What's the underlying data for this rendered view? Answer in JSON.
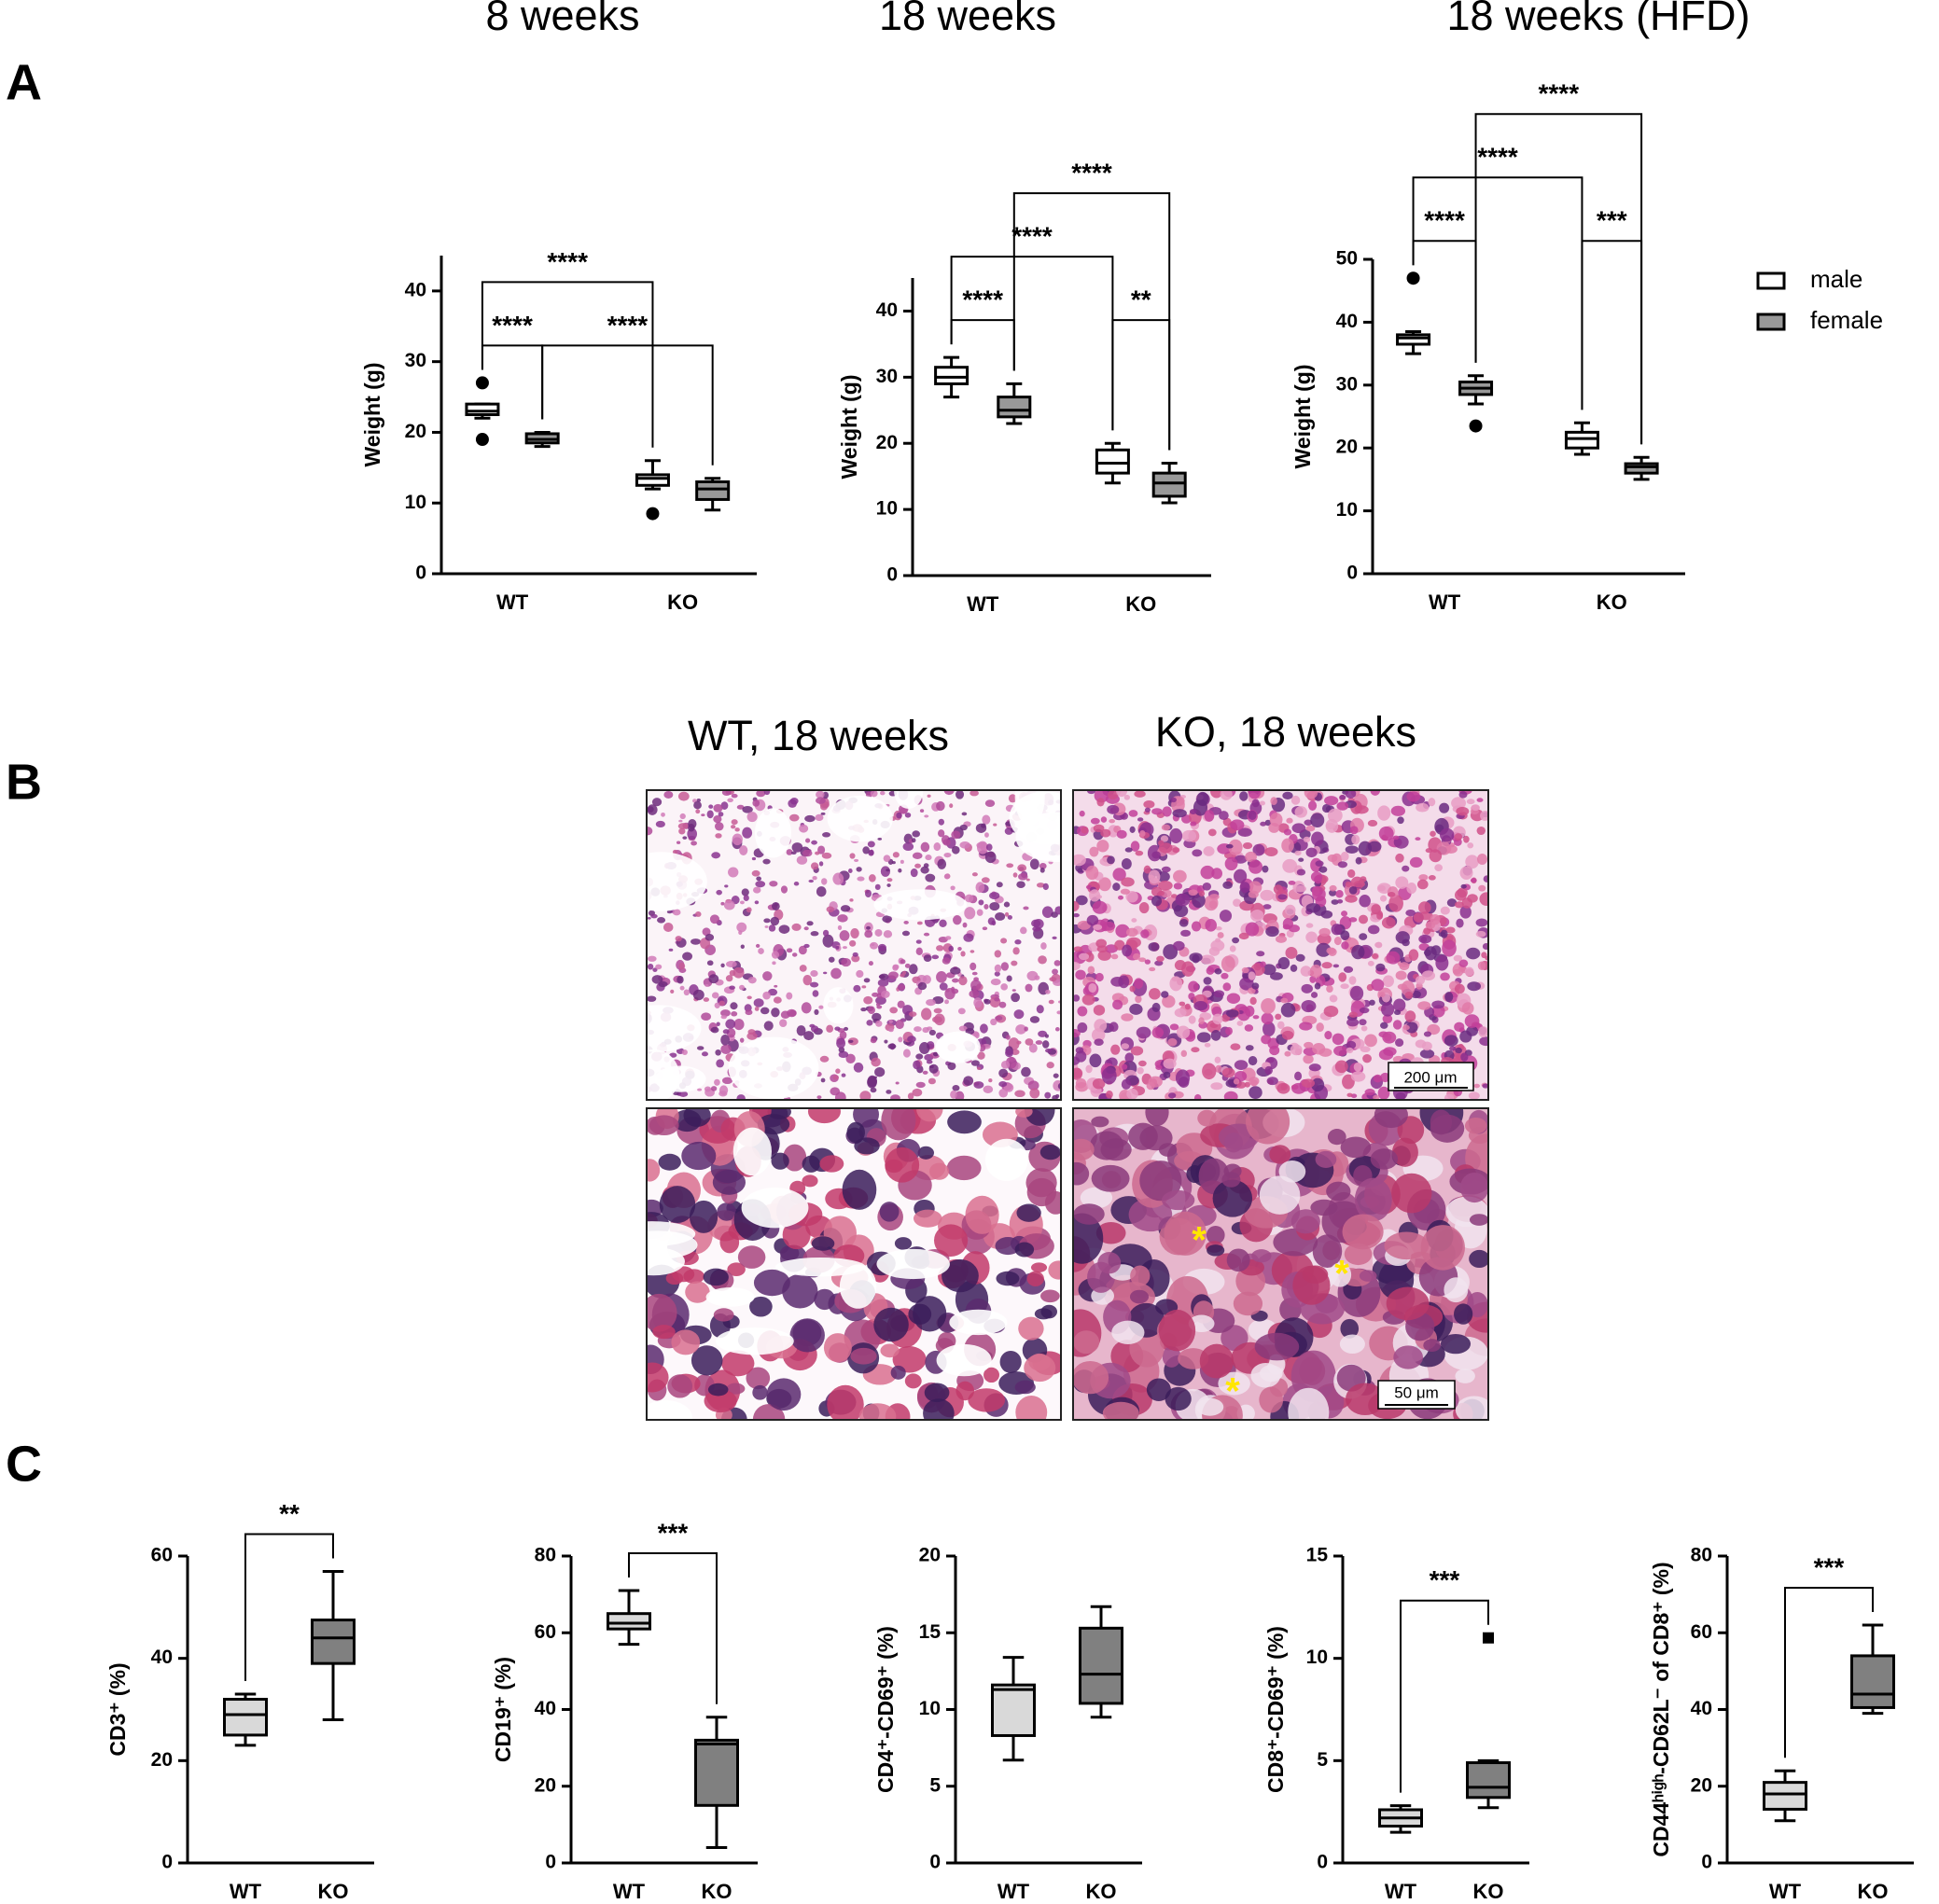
{
  "panels": [
    "A",
    "B",
    "C"
  ],
  "histology": {
    "titles": [
      "WT, 18 weeks",
      "KO, 18 weeks"
    ],
    "scale_bars": [
      "200 μm",
      "50 μm"
    ],
    "markers": [
      "*",
      "*",
      "*"
    ]
  },
  "chart_data": [
    {
      "type": "box",
      "title": "8 weeks",
      "y_label": "Weight (g)",
      "categories": [
        "WT",
        "KO"
      ],
      "ylim": [
        0,
        45
      ],
      "yticks": [
        0,
        10,
        20,
        30,
        40
      ],
      "series": [
        {
          "color": "#ffffff",
          "values": [
            {
              "min": 22,
              "q1": 22.5,
              "median": 23,
              "q3": 24,
              "max": 24,
              "outliers": [
                27,
                19
              ]
            },
            {
              "min": 12,
              "q1": 12.5,
              "median": 13.5,
              "q3": 14,
              "max": 16,
              "outliers": [
                8.5
              ]
            }
          ]
        },
        {
          "color": "#999999",
          "values": [
            {
              "min": 18,
              "q1": 18.5,
              "median": 19,
              "q3": 19.8,
              "max": 20
            },
            {
              "min": 9,
              "q1": 10.5,
              "median": 12,
              "q3": 13,
              "max": 13.5
            }
          ]
        }
      ],
      "comparisons": [
        {
          "groups": [
            0,
            1
          ],
          "label": "****"
        },
        {
          "groups": [
            1,
            3
          ],
          "label": "****"
        },
        {
          "groups": [
            0,
            2
          ],
          "label": "****"
        }
      ]
    },
    {
      "type": "box",
      "title": "18 weeks",
      "y_label": "Weight (g)",
      "categories": [
        "WT",
        "KO"
      ],
      "ylim": [
        0,
        45
      ],
      "yticks": [
        0,
        10,
        20,
        30,
        40
      ],
      "series": [
        {
          "color": "#ffffff",
          "values": [
            {
              "min": 27,
              "q1": 29,
              "median": 30,
              "q3": 31.5,
              "max": 33
            },
            {
              "min": 14,
              "q1": 15.5,
              "median": 17,
              "q3": 19,
              "max": 20
            }
          ]
        },
        {
          "color": "#999999",
          "values": [
            {
              "min": 23,
              "q1": 24,
              "median": 25,
              "q3": 27,
              "max": 29
            },
            {
              "min": 11,
              "q1": 12,
              "median": 14,
              "q3": 15.5,
              "max": 17
            }
          ]
        }
      ],
      "comparisons": [
        {
          "groups": [
            0,
            1
          ],
          "label": "****"
        },
        {
          "groups": [
            2,
            3
          ],
          "label": "**"
        },
        {
          "groups": [
            0,
            2
          ],
          "label": "****"
        },
        {
          "groups": [
            1,
            3
          ],
          "label": "****"
        }
      ]
    },
    {
      "type": "box",
      "title": "18 weeks (HFD)",
      "y_label": "Weight (g)",
      "categories": [
        "WT",
        "KO"
      ],
      "ylim": [
        0,
        50
      ],
      "yticks": [
        0,
        10,
        20,
        30,
        40,
        50
      ],
      "legend": "right",
      "series": [
        {
          "name": "male",
          "color": "#ffffff",
          "values": [
            {
              "min": 35,
              "q1": 36.5,
              "median": 37.5,
              "q3": 38,
              "max": 38.5,
              "outliers": [
                47
              ]
            },
            {
              "min": 19,
              "q1": 20,
              "median": 21.5,
              "q3": 22.5,
              "max": 24
            }
          ]
        },
        {
          "name": "female",
          "color": "#999999",
          "values": [
            {
              "min": 27,
              "q1": 28.5,
              "median": 29.5,
              "q3": 30.5,
              "max": 31.5,
              "outliers": [
                23.5
              ]
            },
            {
              "min": 15,
              "q1": 16,
              "median": 17,
              "q3": 17.5,
              "max": 18.5
            }
          ]
        }
      ],
      "comparisons": [
        {
          "groups": [
            0,
            1
          ],
          "label": "****"
        },
        {
          "groups": [
            2,
            3
          ],
          "label": "***"
        },
        {
          "groups": [
            0,
            2
          ],
          "label": "****"
        },
        {
          "groups": [
            1,
            3
          ],
          "label": "****"
        }
      ]
    },
    {
      "type": "box",
      "y_label": "CD3⁺ (%)",
      "categories": [
        "WT",
        "KO"
      ],
      "ylim": [
        0,
        60
      ],
      "yticks": [
        0,
        20,
        40,
        60
      ],
      "series": [
        {
          "colors": [
            "#d9d9d9",
            "#808080"
          ],
          "values": [
            {
              "min": 23,
              "q1": 25,
              "median": 29,
              "q3": 32,
              "max": 33
            },
            {
              "min": 28,
              "q1": 39,
              "median": 44,
              "q3": 47.5,
              "max": 57
            }
          ]
        }
      ],
      "comparisons": [
        {
          "groups": [
            0,
            1
          ],
          "label": "**"
        }
      ]
    },
    {
      "type": "box",
      "y_label": "CD19⁺ (%)",
      "categories": [
        "WT",
        "KO"
      ],
      "ylim": [
        0,
        80
      ],
      "yticks": [
        0,
        20,
        40,
        60,
        80
      ],
      "series": [
        {
          "colors": [
            "#d9d9d9",
            "#808080"
          ],
          "values": [
            {
              "min": 57,
              "q1": 61,
              "median": 62.5,
              "q3": 65,
              "max": 71
            },
            {
              "min": 4,
              "q1": 15,
              "median": 31,
              "q3": 32,
              "max": 38
            }
          ]
        }
      ],
      "comparisons": [
        {
          "groups": [
            0,
            1
          ],
          "label": "***"
        }
      ]
    },
    {
      "type": "box",
      "y_label": "CD4⁺-CD69⁺ (%)",
      "categories": [
        "WT",
        "KO"
      ],
      "ylim": [
        0,
        20
      ],
      "yticks": [
        0,
        5,
        10,
        15,
        20
      ],
      "series": [
        {
          "colors": [
            "#d9d9d9",
            "#808080"
          ],
          "values": [
            {
              "min": 6.7,
              "q1": 8.3,
              "median": 11.3,
              "q3": 11.6,
              "max": 13.4
            },
            {
              "min": 9.5,
              "q1": 10.4,
              "median": 12.3,
              "q3": 15.3,
              "max": 16.7
            }
          ]
        }
      ]
    },
    {
      "type": "box",
      "y_label": "CD8⁺-CD69⁺ (%)",
      "categories": [
        "WT",
        "KO"
      ],
      "ylim": [
        0,
        15
      ],
      "yticks": [
        0,
        5,
        10,
        15
      ],
      "series": [
        {
          "colors": [
            "#d9d9d9",
            "#808080"
          ],
          "marker": "square",
          "values": [
            {
              "min": 1.5,
              "q1": 1.8,
              "median": 2.2,
              "q3": 2.6,
              "max": 2.8
            },
            {
              "min": 2.7,
              "q1": 3.2,
              "median": 3.7,
              "q3": 4.9,
              "max": 5,
              "outliers": [
                11
              ]
            }
          ]
        }
      ],
      "comparisons": [
        {
          "groups": [
            0,
            1
          ],
          "label": "***"
        }
      ]
    },
    {
      "type": "box",
      "y_label": "CD44ʰⁱᵍʰ-CD62L⁻ of CD8⁺ (%)",
      "categories": [
        "WT",
        "KO"
      ],
      "ylim": [
        0,
        80
      ],
      "yticks": [
        0,
        20,
        40,
        60,
        80
      ],
      "series": [
        {
          "colors": [
            "#d9d9d9",
            "#808080"
          ],
          "values": [
            {
              "min": 11,
              "q1": 14,
              "median": 18,
              "q3": 21,
              "max": 24
            },
            {
              "min": 39,
              "q1": 40.5,
              "median": 44,
              "q3": 54,
              "max": 62
            }
          ]
        }
      ],
      "comparisons": [
        {
          "groups": [
            0,
            1
          ],
          "label": "***"
        }
      ]
    }
  ]
}
